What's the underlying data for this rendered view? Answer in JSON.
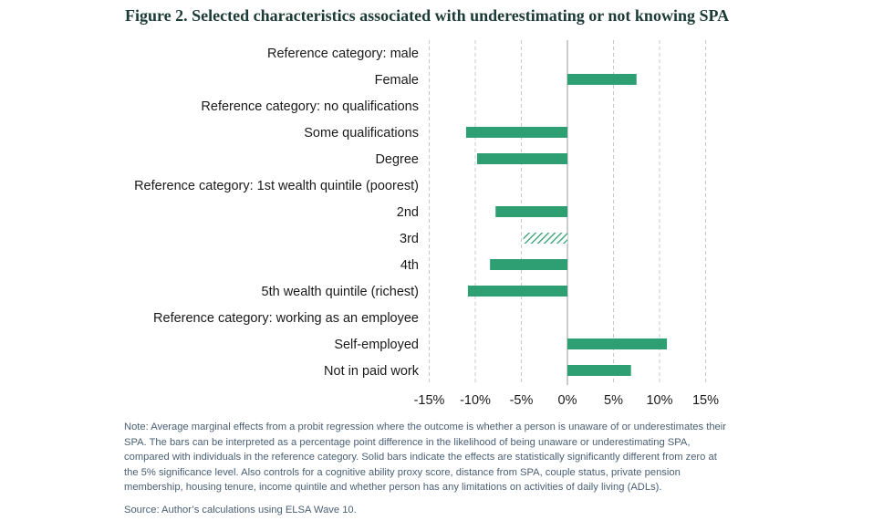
{
  "figure": {
    "title": "Figure 2. Selected characteristics associated with underestimating or not knowing SPA",
    "note": "Note: Average marginal effects from a probit regression where the outcome is whether a person is unaware of or underestimates their SPA. The bars can be interpreted as a percentage point difference in the likelihood of being unaware or underestimating SPA, compared with individuals in the reference category. Solid bars indicate the effects are statistically significantly different from zero at the 5% significance level. Also controls for a cognitive ability proxy score, distance from SPA, couple status, private pension membership, housing tenure, income quintile and whether person has any limitations on activities of daily living (ADLs).",
    "source": "Source: Author’s calculations using ELSA Wave 10."
  },
  "colors": {
    "bar": "#2e9e73",
    "title": "#1d3b36",
    "text": "#1a1a1a",
    "note": "#4a5f74",
    "grid": "#c8c8c8",
    "zero_line": "#9a9a9a"
  },
  "chart_data": {
    "type": "bar",
    "orientation": "horizontal",
    "x_unit": "percentage point difference",
    "xlim": [
      -15,
      15
    ],
    "xticks": [
      -15,
      -10,
      -5,
      0,
      5,
      10,
      15
    ],
    "xtick_labels": [
      "-15%",
      "-10%",
      "-5%",
      "0%",
      "5%",
      "10%",
      "15%"
    ],
    "grid": "vertical dashed",
    "categories": [
      "Reference category: male",
      "Female",
      "Reference category: no qualifications",
      "Some qualifications",
      "Degree",
      "Reference category: 1st wealth quintile (poorest)",
      "2nd",
      "3rd",
      "4th",
      "5th wealth quintile (richest)",
      "Reference category: working as an employee",
      "Self-employed",
      "Not in paid work"
    ],
    "values": [
      null,
      7.5,
      null,
      -11,
      -9.8,
      null,
      -7.8,
      -4.8,
      -8.4,
      -10.8,
      null,
      10.8,
      6.9
    ],
    "significant": [
      null,
      true,
      null,
      true,
      true,
      null,
      true,
      false,
      true,
      true,
      null,
      true,
      true
    ]
  }
}
